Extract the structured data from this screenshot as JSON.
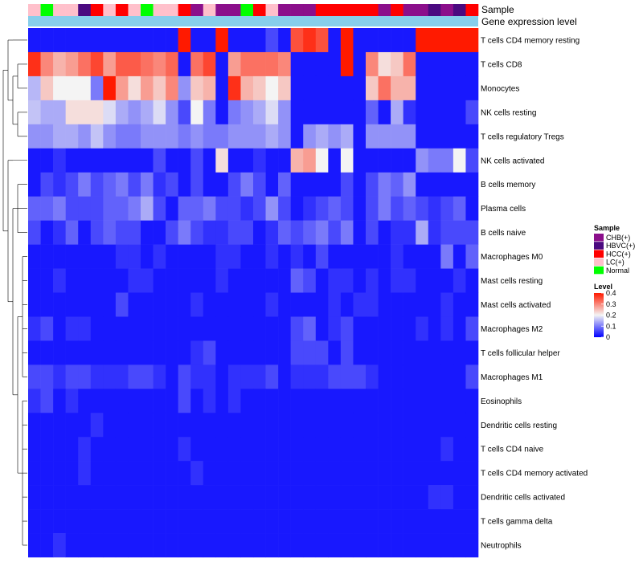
{
  "chart_data": {
    "type": "heatmap",
    "annotation_labels": [
      "Sample",
      "Gene expression level"
    ],
    "rows": [
      "T cells CD4 memory resting",
      "T cells CD8",
      "Monocytes",
      "NK cells resting",
      "T cells regulatory  Tregs",
      "NK cells activated",
      "B cells memory",
      "Plasma cells",
      "B cells naive",
      "Macrophages M0",
      "Mast cells resting",
      "Mast cells activated",
      "Macrophages M2",
      "T cells follicular helper",
      "Macrophages M1",
      "Eosinophils",
      "Dendritic cells resting",
      "T cells CD4 naive",
      "T cells CD4 memory activated",
      "Dendritic cells activated",
      "T cells gamma delta",
      "Neutrophils"
    ],
    "samples": [
      "LC(+)",
      "Normal",
      "LC(+)",
      "LC(+)",
      "HBVC(+)",
      "HCC(+)",
      "LC(+)",
      "HCC(+)",
      "LC(+)",
      "Normal",
      "LC(+)",
      "LC(+)",
      "HCC(+)",
      "CHB(+)",
      "LC(+)",
      "CHB(+)",
      "CHB(+)",
      "Normal",
      "HCC(+)",
      "LC(+)",
      "CHB(+)",
      "CHB(+)",
      "CHB(+)",
      "HCC(+)",
      "HCC(+)",
      "HCC(+)",
      "HCC(+)",
      "HCC(+)",
      "CHB(+)",
      "HCC(+)",
      "CHB(+)",
      "CHB(+)",
      "HBVC(+)",
      "CHB(+)",
      "HBVC(+)",
      "HCC(+)"
    ],
    "values": [
      [
        0.02,
        0.02,
        0.02,
        0.02,
        0.02,
        0.02,
        0.02,
        0.02,
        0.02,
        0.02,
        0.02,
        0.02,
        0.4,
        0.02,
        0.02,
        0.4,
        0.02,
        0.02,
        0.02,
        0.06,
        0.02,
        0.35,
        0.38,
        0.35,
        0.02,
        0.4,
        0.02,
        0.02,
        0.02,
        0.02,
        0.02,
        0.4,
        0.4,
        0.4,
        0.4,
        0.4
      ],
      [
        0.38,
        0.3,
        0.26,
        0.28,
        0.32,
        0.36,
        0.28,
        0.34,
        0.34,
        0.32,
        0.3,
        0.33,
        0.02,
        0.32,
        0.36,
        0.02,
        0.28,
        0.32,
        0.32,
        0.32,
        0.3,
        0.02,
        0.02,
        0.02,
        0.02,
        0.4,
        0.02,
        0.3,
        0.22,
        0.24,
        0.32,
        0.02,
        0.02,
        0.02,
        0.02,
        0.02
      ],
      [
        0.15,
        0.24,
        0.2,
        0.2,
        0.2,
        0.1,
        0.4,
        0.28,
        0.22,
        0.28,
        0.24,
        0.3,
        0.12,
        0.24,
        0.26,
        0.02,
        0.38,
        0.26,
        0.24,
        0.2,
        0.24,
        0.02,
        0.02,
        0.02,
        0.02,
        0.02,
        0.02,
        0.24,
        0.32,
        0.26,
        0.26,
        0.02,
        0.02,
        0.02,
        0.02,
        0.02
      ],
      [
        0.16,
        0.14,
        0.14,
        0.22,
        0.22,
        0.22,
        0.18,
        0.14,
        0.12,
        0.14,
        0.18,
        0.12,
        0.06,
        0.2,
        0.1,
        0.02,
        0.1,
        0.12,
        0.14,
        0.18,
        0.12,
        0.02,
        0.02,
        0.02,
        0.02,
        0.02,
        0.02,
        0.08,
        0.02,
        0.14,
        0.04,
        0.02,
        0.02,
        0.02,
        0.02,
        0.06
      ],
      [
        0.12,
        0.12,
        0.14,
        0.14,
        0.12,
        0.16,
        0.12,
        0.1,
        0.1,
        0.12,
        0.12,
        0.12,
        0.1,
        0.12,
        0.1,
        0.1,
        0.12,
        0.12,
        0.12,
        0.14,
        0.12,
        0.02,
        0.12,
        0.14,
        0.12,
        0.14,
        0.02,
        0.12,
        0.12,
        0.12,
        0.12,
        0.02,
        0.02,
        0.02,
        0.02,
        0.02
      ],
      [
        0.02,
        0.02,
        0.04,
        0.02,
        0.02,
        0.02,
        0.02,
        0.02,
        0.02,
        0.02,
        0.06,
        0.02,
        0.02,
        0.06,
        0.02,
        0.22,
        0.02,
        0.02,
        0.04,
        0.02,
        0.02,
        0.26,
        0.28,
        0.2,
        0.02,
        0.2,
        0.02,
        0.02,
        0.02,
        0.02,
        0.02,
        0.12,
        0.1,
        0.1,
        0.2,
        0.06
      ],
      [
        0.02,
        0.06,
        0.04,
        0.06,
        0.1,
        0.06,
        0.08,
        0.1,
        0.06,
        0.1,
        0.04,
        0.06,
        0.02,
        0.06,
        0.02,
        0.02,
        0.06,
        0.1,
        0.06,
        0.02,
        0.08,
        0.02,
        0.02,
        0.02,
        0.02,
        0.06,
        0.02,
        0.06,
        0.1,
        0.08,
        0.12,
        0.02,
        0.02,
        0.02,
        0.02,
        0.02
      ],
      [
        0.08,
        0.08,
        0.1,
        0.06,
        0.06,
        0.06,
        0.08,
        0.08,
        0.1,
        0.14,
        0.06,
        0.02,
        0.08,
        0.08,
        0.1,
        0.06,
        0.06,
        0.04,
        0.06,
        0.12,
        0.06,
        0.02,
        0.04,
        0.06,
        0.08,
        0.06,
        0.02,
        0.06,
        0.1,
        0.06,
        0.08,
        0.06,
        0.04,
        0.06,
        0.08,
        0.02
      ],
      [
        0.06,
        0.02,
        0.04,
        0.08,
        0.02,
        0.06,
        0.08,
        0.06,
        0.06,
        0.02,
        0.02,
        0.06,
        0.1,
        0.06,
        0.04,
        0.04,
        0.06,
        0.06,
        0.02,
        0.04,
        0.08,
        0.06,
        0.08,
        0.1,
        0.06,
        0.1,
        0.02,
        0.06,
        0.02,
        0.04,
        0.04,
        0.14,
        0.04,
        0.06,
        0.06,
        0.06
      ],
      [
        0.02,
        0.02,
        0.02,
        0.02,
        0.02,
        0.02,
        0.02,
        0.04,
        0.04,
        0.02,
        0.04,
        0.02,
        0.02,
        0.02,
        0.02,
        0.04,
        0.04,
        0.02,
        0.02,
        0.04,
        0.02,
        0.04,
        0.02,
        0.06,
        0.02,
        0.02,
        0.02,
        0.02,
        0.02,
        0.04,
        0.02,
        0.02,
        0.02,
        0.1,
        0.02,
        0.08
      ],
      [
        0.02,
        0.02,
        0.04,
        0.02,
        0.02,
        0.02,
        0.02,
        0.02,
        0.04,
        0.04,
        0.02,
        0.02,
        0.02,
        0.02,
        0.02,
        0.04,
        0.02,
        0.02,
        0.02,
        0.02,
        0.02,
        0.08,
        0.06,
        0.02,
        0.04,
        0.04,
        0.02,
        0.04,
        0.02,
        0.04,
        0.04,
        0.02,
        0.02,
        0.02,
        0.04,
        0.02
      ],
      [
        0.02,
        0.02,
        0.02,
        0.02,
        0.02,
        0.02,
        0.02,
        0.06,
        0.02,
        0.02,
        0.02,
        0.02,
        0.02,
        0.04,
        0.02,
        0.02,
        0.02,
        0.02,
        0.02,
        0.04,
        0.02,
        0.02,
        0.02,
        0.02,
        0.04,
        0.02,
        0.04,
        0.04,
        0.02,
        0.02,
        0.02,
        0.02,
        0.02,
        0.04,
        0.02,
        0.02
      ],
      [
        0.04,
        0.06,
        0.02,
        0.04,
        0.04,
        0.02,
        0.02,
        0.02,
        0.02,
        0.02,
        0.02,
        0.02,
        0.02,
        0.02,
        0.02,
        0.02,
        0.02,
        0.02,
        0.02,
        0.02,
        0.02,
        0.06,
        0.08,
        0.02,
        0.04,
        0.06,
        0.02,
        0.02,
        0.02,
        0.02,
        0.02,
        0.04,
        0.02,
        0.04,
        0.02,
        0.06
      ],
      [
        0.02,
        0.02,
        0.02,
        0.02,
        0.02,
        0.02,
        0.02,
        0.02,
        0.02,
        0.02,
        0.02,
        0.02,
        0.02,
        0.04,
        0.06,
        0.02,
        0.02,
        0.02,
        0.02,
        0.02,
        0.02,
        0.06,
        0.06,
        0.06,
        0.02,
        0.06,
        0.02,
        0.02,
        0.02,
        0.02,
        0.02,
        0.02,
        0.02,
        0.02,
        0.02,
        0.02
      ],
      [
        0.06,
        0.06,
        0.04,
        0.06,
        0.06,
        0.04,
        0.04,
        0.04,
        0.06,
        0.06,
        0.04,
        0.02,
        0.06,
        0.04,
        0.04,
        0.02,
        0.04,
        0.04,
        0.04,
        0.06,
        0.02,
        0.04,
        0.04,
        0.04,
        0.06,
        0.06,
        0.06,
        0.04,
        0.02,
        0.02,
        0.02,
        0.02,
        0.02,
        0.02,
        0.02,
        0.06
      ],
      [
        0.04,
        0.06,
        0.02,
        0.04,
        0.02,
        0.02,
        0.02,
        0.02,
        0.02,
        0.02,
        0.02,
        0.02,
        0.06,
        0.02,
        0.04,
        0.02,
        0.04,
        0.02,
        0.02,
        0.02,
        0.02,
        0.02,
        0.02,
        0.02,
        0.02,
        0.02,
        0.02,
        0.02,
        0.02,
        0.02,
        0.02,
        0.02,
        0.02,
        0.02,
        0.02,
        0.02
      ],
      [
        0.02,
        0.02,
        0.02,
        0.02,
        0.02,
        0.04,
        0.02,
        0.02,
        0.02,
        0.02,
        0.02,
        0.02,
        0.02,
        0.02,
        0.02,
        0.02,
        0.02,
        0.02,
        0.02,
        0.02,
        0.02,
        0.02,
        0.02,
        0.02,
        0.02,
        0.02,
        0.02,
        0.02,
        0.02,
        0.02,
        0.02,
        0.02,
        0.02,
        0.02,
        0.02,
        0.02
      ],
      [
        0.02,
        0.02,
        0.02,
        0.02,
        0.04,
        0.02,
        0.02,
        0.02,
        0.02,
        0.02,
        0.02,
        0.02,
        0.04,
        0.02,
        0.02,
        0.02,
        0.02,
        0.02,
        0.02,
        0.02,
        0.02,
        0.02,
        0.02,
        0.02,
        0.02,
        0.02,
        0.02,
        0.02,
        0.02,
        0.02,
        0.02,
        0.02,
        0.02,
        0.04,
        0.02,
        0.02
      ],
      [
        0.02,
        0.02,
        0.02,
        0.02,
        0.04,
        0.02,
        0.02,
        0.02,
        0.02,
        0.02,
        0.02,
        0.02,
        0.02,
        0.04,
        0.02,
        0.02,
        0.02,
        0.02,
        0.02,
        0.02,
        0.02,
        0.02,
        0.02,
        0.02,
        0.02,
        0.02,
        0.02,
        0.02,
        0.02,
        0.02,
        0.02,
        0.02,
        0.02,
        0.02,
        0.02,
        0.02
      ],
      [
        0.02,
        0.02,
        0.02,
        0.02,
        0.02,
        0.02,
        0.02,
        0.02,
        0.02,
        0.02,
        0.02,
        0.02,
        0.02,
        0.02,
        0.02,
        0.02,
        0.02,
        0.02,
        0.02,
        0.02,
        0.02,
        0.02,
        0.02,
        0.02,
        0.02,
        0.02,
        0.02,
        0.02,
        0.02,
        0.02,
        0.02,
        0.02,
        0.04,
        0.04,
        0.02,
        0.02
      ],
      [
        0.02,
        0.02,
        0.02,
        0.02,
        0.02,
        0.02,
        0.02,
        0.02,
        0.02,
        0.02,
        0.02,
        0.02,
        0.02,
        0.02,
        0.02,
        0.02,
        0.02,
        0.02,
        0.02,
        0.02,
        0.02,
        0.02,
        0.02,
        0.02,
        0.02,
        0.02,
        0.02,
        0.02,
        0.02,
        0.02,
        0.02,
        0.02,
        0.02,
        0.02,
        0.02,
        0.02
      ],
      [
        0.02,
        0.02,
        0.04,
        0.02,
        0.02,
        0.02,
        0.02,
        0.02,
        0.02,
        0.02,
        0.02,
        0.02,
        0.02,
        0.02,
        0.02,
        0.02,
        0.02,
        0.02,
        0.02,
        0.02,
        0.02,
        0.02,
        0.02,
        0.02,
        0.02,
        0.02,
        0.02,
        0.02,
        0.02,
        0.02,
        0.02,
        0.02,
        0.02,
        0.02,
        0.02,
        0.02
      ]
    ],
    "color_scale": {
      "min": 0,
      "mid": 0.2,
      "max": 0.4,
      "low_color": "#0000ff",
      "mid_color": "#f4f4f4",
      "high_color": "#ff1a00"
    },
    "sample_colors": {
      "CHB(+)": "#8b0f8b",
      "HBVC(+)": "#4b0a80",
      "HCC(+)": "#ff0000",
      "LC(+)": "#ffc0cb",
      "Normal": "#00ff00"
    },
    "gene_expression_bar_color": "#87ceeb",
    "legend": {
      "sample_title": "Sample",
      "sample_items": [
        "CHB(+)",
        "HBVC(+)",
        "HCC(+)",
        "LC(+)",
        "Normal"
      ],
      "level_title": "Level",
      "level_ticks": [
        "0.4",
        "0.3",
        "0.2",
        "0.1",
        "0"
      ],
      "level_tick_values": [
        0.4,
        0.3,
        0.2,
        0.1,
        0
      ],
      "placement": "right"
    }
  }
}
